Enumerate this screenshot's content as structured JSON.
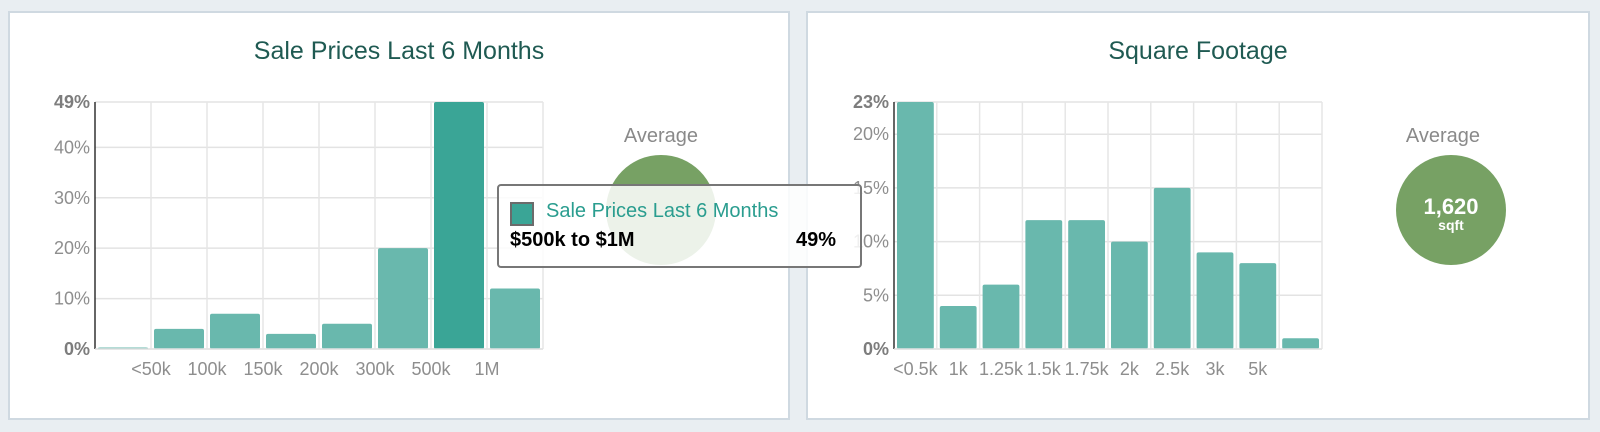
{
  "colors": {
    "bar": "#69b8ad",
    "bar_highlight": "#3aa596",
    "average_circle": "#77a164",
    "title": "#1f5a52"
  },
  "chart_data": [
    {
      "type": "bar",
      "title": "Sale Prices Last 6 Months",
      "categories": [
        "",
        "<50k",
        "100k",
        "150k",
        "200k",
        "300k",
        "500k",
        "1M"
      ],
      "values": [
        0.3,
        4,
        7,
        3,
        5,
        20,
        49,
        12
      ],
      "y_ticks": [
        "0%",
        "10%",
        "20%",
        "30%",
        "40%",
        "49%"
      ],
      "ylim": [
        0,
        49
      ],
      "grid": true,
      "highlighted_index": 6
    },
    {
      "type": "bar",
      "title": "Square Footage",
      "categories": [
        "<0.5k",
        "1k",
        "1.25k",
        "1.5k",
        "1.75k",
        "2k",
        "2.5k",
        "3k",
        "5k",
        ""
      ],
      "values": [
        23,
        4,
        6,
        12,
        12,
        10,
        15,
        9,
        8,
        1
      ],
      "y_ticks": [
        "0%",
        "5%",
        "10%",
        "15%",
        "20%",
        "23%"
      ],
      "ylim": [
        0,
        23
      ],
      "grid": true
    }
  ],
  "panels": [
    {
      "average_label": "Average",
      "average_value": "",
      "average_unit": ""
    },
    {
      "average_label": "Average",
      "average_value": "1,620",
      "average_unit": "sqft"
    }
  ],
  "tooltip": {
    "series": "Sale Prices Last 6 Months",
    "category": "$500k to $1M",
    "value": "49%"
  }
}
